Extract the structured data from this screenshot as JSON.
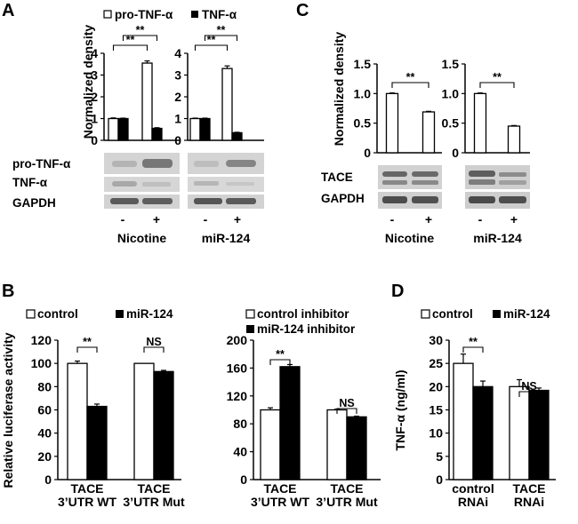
{
  "colors": {
    "control": "#ffffff",
    "treated": "#000000",
    "axis": "#000000"
  },
  "panels": {
    "A": {
      "letter": "A",
      "legend": [
        "pro-TNF-α",
        "TNF-α"
      ],
      "blot_labels": [
        "pro-TNF-α",
        "TNF-α",
        "GAPDH"
      ],
      "lane_labels": [
        "-",
        "+"
      ]
    },
    "B": {
      "letter": "B"
    },
    "C": {
      "letter": "C",
      "blot_labels": [
        "TACE",
        "GAPDH"
      ],
      "lane_labels": [
        "-",
        "+"
      ]
    },
    "D": {
      "letter": "D"
    }
  },
  "chart_data": [
    {
      "id": "A-nicotine",
      "type": "bar",
      "ylabel": "Normalized density",
      "xlabel": "Nicotine",
      "categories": [
        "-",
        "+"
      ],
      "ylim": [
        0,
        4
      ],
      "yticks": [
        0,
        1,
        2,
        3,
        4
      ],
      "grid": false,
      "series": [
        {
          "name": "pro-TNF-α",
          "color": "#ffffff",
          "values": [
            1.0,
            3.55
          ],
          "errors": [
            0.03,
            0.1
          ]
        },
        {
          "name": "TNF-α",
          "color": "#000000",
          "values": [
            1.0,
            0.55
          ],
          "errors": [
            0.02,
            0.03
          ]
        }
      ],
      "significance": [
        {
          "label": "**",
          "from": [
            0,
            1
          ],
          "to": [
            1,
            1
          ]
        },
        {
          "label": "**",
          "from": [
            0,
            0
          ],
          "to": [
            1,
            0
          ]
        }
      ]
    },
    {
      "id": "A-mir124",
      "type": "bar",
      "ylabel": "",
      "xlabel": "miR-124",
      "categories": [
        "-",
        "+"
      ],
      "ylim": [
        0,
        4
      ],
      "yticks": [
        0,
        1,
        2,
        3,
        4
      ],
      "grid": false,
      "series": [
        {
          "name": "pro-TNF-α",
          "color": "#ffffff",
          "values": [
            1.0,
            3.3
          ],
          "errors": [
            0.02,
            0.12
          ]
        },
        {
          "name": "TNF-α",
          "color": "#000000",
          "values": [
            1.0,
            0.35
          ],
          "errors": [
            0.02,
            0.02
          ]
        }
      ],
      "significance": [
        {
          "label": "**",
          "from": [
            0,
            1
          ],
          "to": [
            1,
            1
          ]
        },
        {
          "label": "**",
          "from": [
            0,
            0
          ],
          "to": [
            1,
            0
          ]
        }
      ]
    },
    {
      "id": "C-nicotine",
      "type": "bar",
      "ylabel": "Normalized density",
      "xlabel": "Nicotine",
      "categories": [
        "-",
        "+"
      ],
      "ylim": [
        0,
        1.5
      ],
      "yticks": [
        "0",
        "0.5",
        "1.0",
        "1.5"
      ],
      "grid": false,
      "series": [
        {
          "name": "",
          "color": "#ffffff",
          "values": [
            1.0,
            0.69
          ],
          "errors": [
            0.01,
            0.01
          ]
        }
      ],
      "significance": [
        {
          "label": "**",
          "from": [
            0,
            0
          ],
          "to": [
            1,
            0
          ]
        }
      ]
    },
    {
      "id": "C-mir124",
      "type": "bar",
      "ylabel": "",
      "xlabel": "miR-124",
      "categories": [
        "-",
        "+"
      ],
      "ylim": [
        0,
        1.5
      ],
      "yticks": [
        "0",
        "0.5",
        "1.0",
        "1.5"
      ],
      "grid": false,
      "series": [
        {
          "name": "",
          "color": "#ffffff",
          "values": [
            1.0,
            0.45
          ],
          "errors": [
            0.01,
            0.01
          ]
        }
      ],
      "significance": [
        {
          "label": "**",
          "from": [
            0,
            0
          ],
          "to": [
            1,
            0
          ]
        }
      ]
    },
    {
      "id": "B-mimic",
      "type": "bar",
      "ylabel": "Relative luciferase activity",
      "categories": [
        "TACE\n3'UTR WT",
        "TACE\n3'UTR Mut"
      ],
      "ylim": [
        0,
        120
      ],
      "yticks": [
        0,
        20,
        40,
        60,
        80,
        100,
        120
      ],
      "grid": false,
      "legend_position": "top",
      "series": [
        {
          "name": "control",
          "color": "#ffffff",
          "values": [
            100,
            100
          ],
          "errors": [
            2,
            0
          ]
        },
        {
          "name": "miR-124",
          "color": "#000000",
          "values": [
            63,
            93
          ],
          "errors": [
            2,
            1
          ]
        }
      ],
      "significance": [
        {
          "label": "**",
          "from": [
            0,
            0
          ],
          "to": [
            0,
            1
          ]
        },
        {
          "label": "NS",
          "from": [
            1,
            0
          ],
          "to": [
            1,
            1
          ]
        }
      ]
    },
    {
      "id": "B-inhibitor",
      "type": "bar",
      "ylabel": "",
      "categories": [
        "TACE\n3'UTR WT",
        "TACE\n3'UTR Mut"
      ],
      "ylim": [
        0,
        200
      ],
      "yticks": [
        0,
        40,
        80,
        120,
        160,
        200
      ],
      "grid": false,
      "legend_position": "top",
      "series": [
        {
          "name": "control inhibitor",
          "color": "#ffffff",
          "values": [
            100,
            100
          ],
          "errors": [
            3,
            1
          ]
        },
        {
          "name": "miR-124 inhibitor",
          "color": "#000000",
          "values": [
            162,
            90
          ],
          "errors": [
            3,
            1
          ]
        }
      ],
      "significance": [
        {
          "label": "**",
          "from": [
            0,
            0
          ],
          "to": [
            0,
            1
          ]
        },
        {
          "label": "NS",
          "from": [
            1,
            0
          ],
          "to": [
            1,
            1
          ]
        }
      ]
    },
    {
      "id": "D",
      "type": "bar",
      "ylabel": "TNF-α (ng/ml)",
      "categories": [
        "control\nRNAi",
        "TACE\nRNAi"
      ],
      "ylim": [
        0,
        30
      ],
      "yticks": [
        0,
        5,
        10,
        15,
        20,
        25,
        30
      ],
      "grid": false,
      "legend_position": "top",
      "series": [
        {
          "name": "control",
          "color": "#ffffff",
          "values": [
            25,
            20
          ],
          "errors": [
            2,
            1.5
          ]
        },
        {
          "name": "miR-124",
          "color": "#000000",
          "values": [
            20,
            19.2
          ],
          "errors": [
            1.2,
            0.5
          ]
        }
      ],
      "significance": [
        {
          "label": "**",
          "from": [
            0,
            0
          ],
          "to": [
            0,
            1
          ]
        },
        {
          "label": "NS",
          "from": [
            1,
            0
          ],
          "to": [
            1,
            1
          ]
        }
      ]
    }
  ]
}
